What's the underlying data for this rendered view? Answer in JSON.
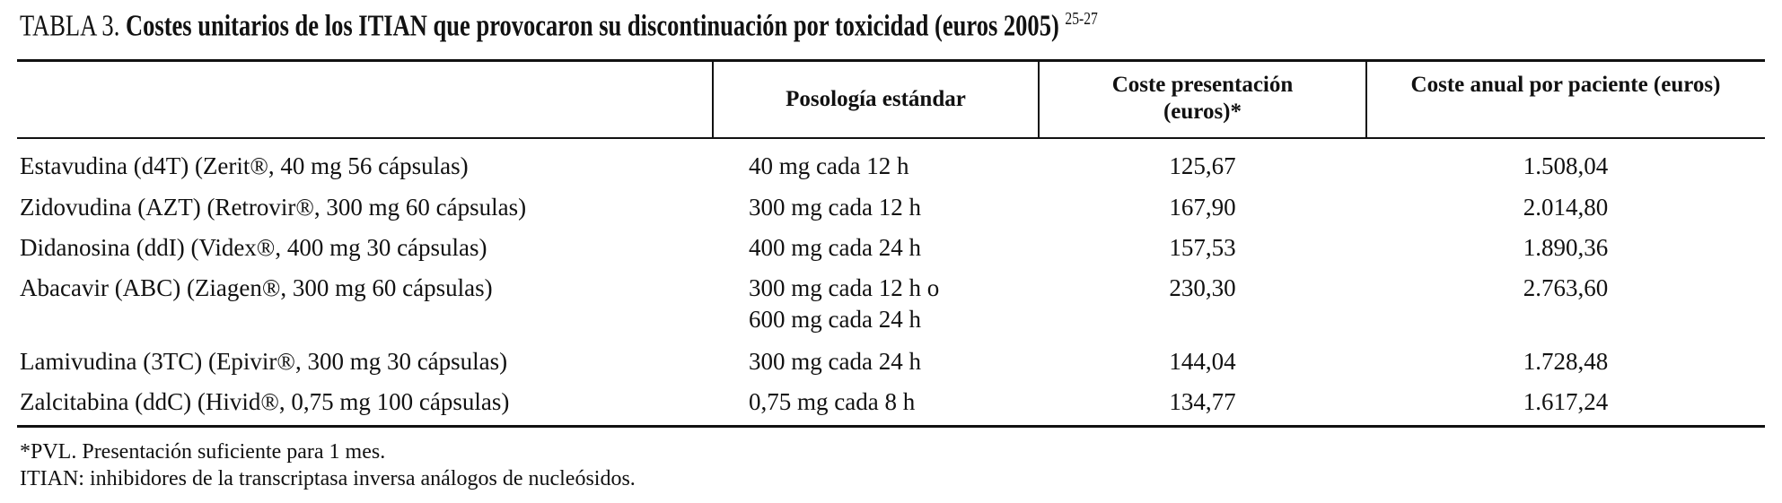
{
  "caption": {
    "label": "TABLA 3.",
    "title": "Costes unitarios de los ITIAN que provocaron su discontinuación por toxicidad (euros 2005)",
    "refs": "25-27"
  },
  "table": {
    "header": [
      "",
      "Posología estándar",
      "Coste presentación (euros)*",
      "Coste anual por paciente (euros)"
    ],
    "rows": [
      [
        "Estavudina (d4T) (Zerit®, 40 mg 56 cápsulas)",
        [
          "40 mg cada 12 h"
        ],
        "125,67",
        "1.508,04"
      ],
      [
        "Zidovudina (AZT) (Retrovir®, 300 mg 60 cápsulas)",
        [
          "300 mg cada 12 h"
        ],
        "167,90",
        "2.014,80"
      ],
      [
        "Didanosina (ddI) (Videx®, 400 mg 30 cápsulas)",
        [
          "400 mg cada 24 h"
        ],
        "157,53",
        "1.890,36"
      ],
      [
        "Abacavir (ABC) (Ziagen®, 300 mg 60 cápsulas)",
        [
          "300 mg cada 12 h o",
          "600 mg cada 24 h"
        ],
        "230,30",
        "2.763,60"
      ],
      [
        "Lamivudina (3TC) (Epivir®, 300 mg 30 cápsulas)",
        [
          "300 mg cada 24 h"
        ],
        "144,04",
        "1.728,48"
      ],
      [
        "Zalcitabina (ddC) (Hivid®, 0,75 mg 100 cápsulas)",
        [
          "0,75 mg cada 8 h"
        ],
        "134,77",
        "1.617,24"
      ]
    ]
  },
  "footnotes": [
    "*PVL. Presentación suficiente para 1 mes.",
    "ITIAN: inhibidores de la transcriptasa inversa análogos de nucleósidos."
  ]
}
